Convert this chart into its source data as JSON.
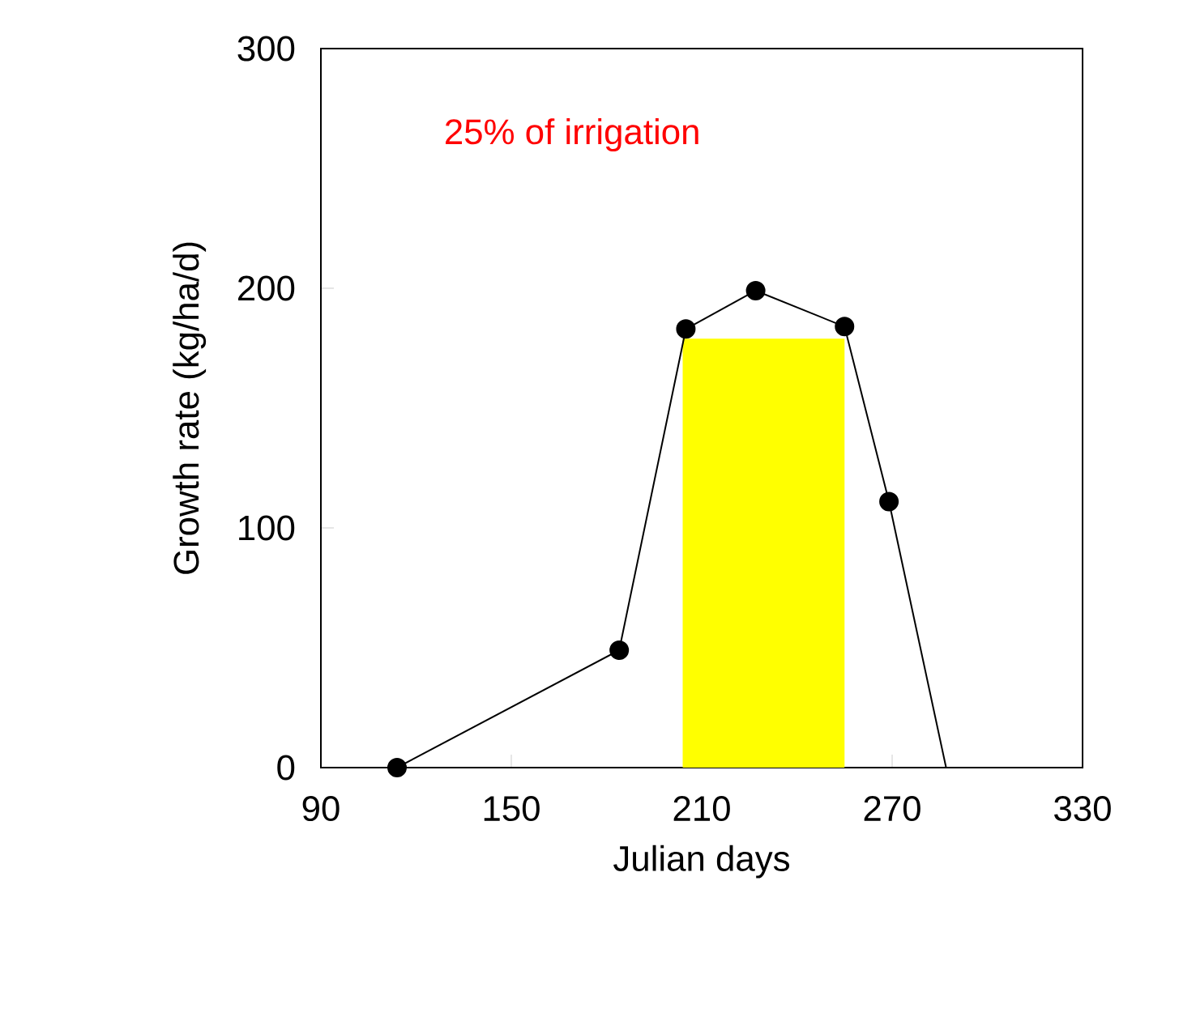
{
  "chart_data": {
    "type": "line",
    "xlabel": "Julian days",
    "ylabel": "Growth rate (kg/ha/d)",
    "annotations": [
      "25% of irrigation"
    ],
    "series": [
      {
        "type": "area",
        "color": "#ffff00",
        "x": [
          204,
          255
        ],
        "values": [
          179,
          179
        ],
        "marker": "none"
      },
      {
        "color": "#000000",
        "x": [
          114,
          184,
          205,
          227,
          255,
          269
        ],
        "values": [
          0,
          49,
          183,
          199,
          184,
          111
        ],
        "marker": "circle"
      },
      {
        "color": "#000000",
        "x": [
          269,
          287
        ],
        "values": [
          111,
          0
        ],
        "marker": "none"
      }
    ],
    "xlim": [
      90,
      330
    ],
    "xticks": [
      90,
      150,
      210,
      270,
      330
    ],
    "ylim": [
      0,
      300
    ],
    "yticks": [
      0,
      100,
      200,
      300
    ],
    "grid": false,
    "line_style": "solid"
  }
}
